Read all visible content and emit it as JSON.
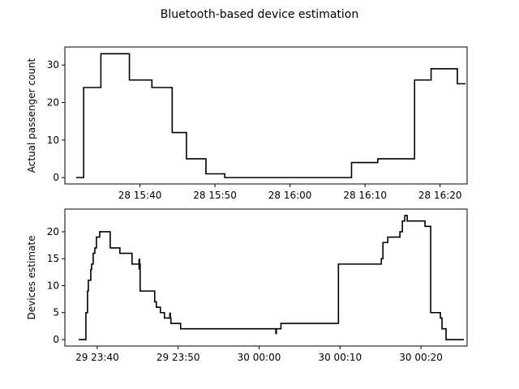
{
  "figure": {
    "suptitle": "Bluetooth-based device estimation"
  },
  "chart_data": [
    {
      "type": "line",
      "title": "",
      "xlabel": "",
      "ylabel": "Actual passenger count",
      "x_ticks": [
        {
          "label": "28 15:40",
          "t": 6.0
        },
        {
          "label": "28 15:50",
          "t": 16.0
        },
        {
          "label": "28 16:00",
          "t": 26.0
        },
        {
          "label": "28 16:10",
          "t": 36.0
        },
        {
          "label": "28 16:20",
          "t": 46.0
        }
      ],
      "y_ticks": [
        0,
        10,
        20,
        30
      ],
      "xlim": [
        -4.0,
        49.6
      ],
      "ylim": [
        -1.7,
        34.8
      ],
      "grid": false,
      "series": [
        {
          "color": "#000000",
          "step": true,
          "t": [
            -2.5,
            -1.5,
            -1.5,
            0.8,
            0.8,
            4.6,
            4.6,
            7.6,
            7.6,
            10.3,
            10.3,
            12.2,
            12.2,
            14.8,
            14.8,
            17.3,
            17.3,
            19.2,
            19.2,
            34.2,
            34.2,
            37.7,
            37.7,
            42.6,
            42.6,
            44.8,
            44.8,
            48.3,
            48.3,
            49.4
          ],
          "y": [
            0,
            0,
            24,
            24,
            33,
            33,
            26,
            26,
            24,
            24,
            12,
            12,
            5,
            5,
            1,
            1,
            0,
            0,
            0,
            0,
            4,
            4,
            5,
            5,
            26,
            26,
            29,
            29,
            25,
            25
          ]
        }
      ]
    },
    {
      "type": "line",
      "title": "",
      "xlabel": "",
      "ylabel": "Devices estimate",
      "x_ticks": [
        {
          "label": "29 23:40",
          "t": 0.0
        },
        {
          "label": "29 23:50",
          "t": 10.0
        },
        {
          "label": "30 00:00",
          "t": 20.0
        },
        {
          "label": "30 00:10",
          "t": 30.0
        },
        {
          "label": "30 00:20",
          "t": 40.0
        }
      ],
      "y_ticks": [
        0,
        5,
        10,
        15,
        20
      ],
      "xlim": [
        -4.0,
        45.7
      ],
      "ylim": [
        -1.2,
        24.2
      ],
      "grid": false,
      "series": [
        {
          "color": "#000000",
          "step": true,
          "t": [
            -2.3,
            -1.4,
            -1.4,
            -1.2,
            -1.2,
            -1.1,
            -1.1,
            -0.8,
            -0.8,
            -0.7,
            -0.7,
            -0.5,
            -0.5,
            -0.3,
            -0.3,
            -0.1,
            -0.1,
            0.3,
            0.3,
            0.6,
            0.6,
            1.6,
            1.6,
            2.8,
            2.8,
            4.3,
            4.3,
            5.0,
            5.0,
            5.1,
            5.1,
            5.3,
            5.3,
            7.1,
            7.1,
            7.3,
            7.3,
            7.8,
            7.8,
            8.3,
            8.3,
            8.9,
            8.9,
            9.1,
            9.1,
            10.3,
            10.3,
            12.2,
            12.2,
            22.7,
            22.7,
            23.8,
            23.8,
            29.8,
            29.8,
            35.1,
            35.1,
            35.3,
            35.3,
            35.4,
            35.4,
            35.9,
            35.9,
            37.4,
            37.4,
            37.7,
            37.7,
            38.0,
            38.0,
            38.3,
            38.3,
            40.5,
            40.5,
            41.2,
            41.2,
            42.4,
            42.4,
            42.6,
            42.6,
            43.1,
            43.1,
            44.3,
            44.3,
            45.3
          ],
          "y": [
            0,
            0,
            5,
            5,
            9,
            9,
            11,
            11,
            13,
            13,
            14,
            14,
            16,
            16,
            17,
            17,
            19,
            19,
            20,
            20,
            20,
            20,
            17,
            17,
            16,
            16,
            14,
            14,
            14,
            14,
            14,
            14,
            9,
            9,
            7,
            7,
            6,
            6,
            5,
            5,
            4,
            4,
            4,
            4,
            3,
            3,
            2,
            2,
            2,
            2,
            3,
            3,
            3,
            3,
            14,
            14,
            15,
            15,
            18,
            18,
            18,
            18,
            19,
            19,
            20,
            20,
            22,
            22,
            23,
            23,
            22,
            22,
            21,
            21,
            5,
            5,
            4,
            4,
            2,
            2,
            0,
            0,
            0,
            0
          ],
          "blips": [
            {
              "t": 5.2,
              "y0": 15,
              "y1": 13
            },
            {
              "t": 9.0,
              "y0": 5,
              "y1": 4
            },
            {
              "t": 22.1,
              "y0": 2,
              "y1": 1
            }
          ]
        }
      ]
    }
  ]
}
